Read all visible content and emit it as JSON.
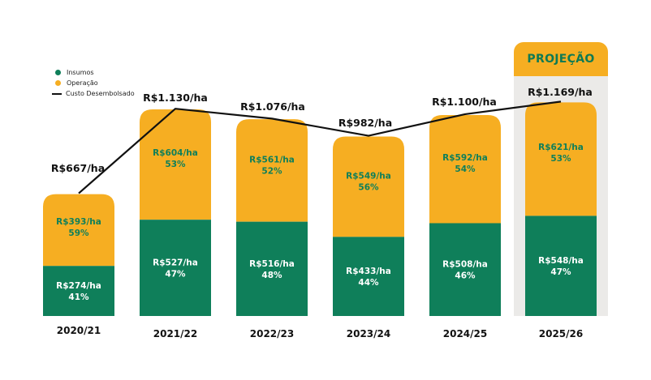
{
  "colors": {
    "insumos": "#0f7f5a",
    "operacao": "#f6ae22",
    "line": "#111111",
    "projection_bg": "#ebeae8",
    "operacao_text": "#0f7f5a",
    "insumos_text": "#ffffff"
  },
  "projection_label": "PROJEÇÃO",
  "chart_data": {
    "type": "bar",
    "stacked": true,
    "categories": [
      "2020/21",
      "2021/22",
      "2022/23",
      "2023/24",
      "2024/25",
      "2025/26"
    ],
    "series": [
      {
        "name": "Insumos",
        "values": [
          274,
          527,
          516,
          433,
          508,
          548
        ],
        "labels": [
          "R$274/ha",
          "R$527/ha",
          "R$516/ha",
          "R$433/ha",
          "R$508/ha",
          "R$548/ha"
        ],
        "percents": [
          "41%",
          "47%",
          "48%",
          "44%",
          "46%",
          "47%"
        ]
      },
      {
        "name": "Operação",
        "values": [
          393,
          604,
          561,
          549,
          592,
          621
        ],
        "labels": [
          "R$393/ha",
          "R$604/ha",
          "R$561/ha",
          "R$549/ha",
          "R$592/ha",
          "R$621/ha"
        ],
        "percents": [
          "59%",
          "53%",
          "52%",
          "56%",
          "54%",
          "53%"
        ]
      },
      {
        "name": "Custo Desembolsado",
        "type": "line",
        "values": [
          667,
          1130,
          1076,
          982,
          1100,
          1169
        ],
        "labels": [
          "R$667/ha",
          "R$1.130/ha",
          "R$1.076/ha",
          "R$982/ha",
          "R$1.100/ha",
          "R$1.169/ha"
        ]
      }
    ],
    "projection_categories": [
      "2025/26"
    ],
    "legend": [
      "Insumos",
      "Operação",
      "Custo Desembolsado"
    ],
    "legend_position": "top-left",
    "ylim": [
      0,
      1300
    ],
    "grid": false,
    "title": "",
    "xlabel": "",
    "ylabel": ""
  }
}
